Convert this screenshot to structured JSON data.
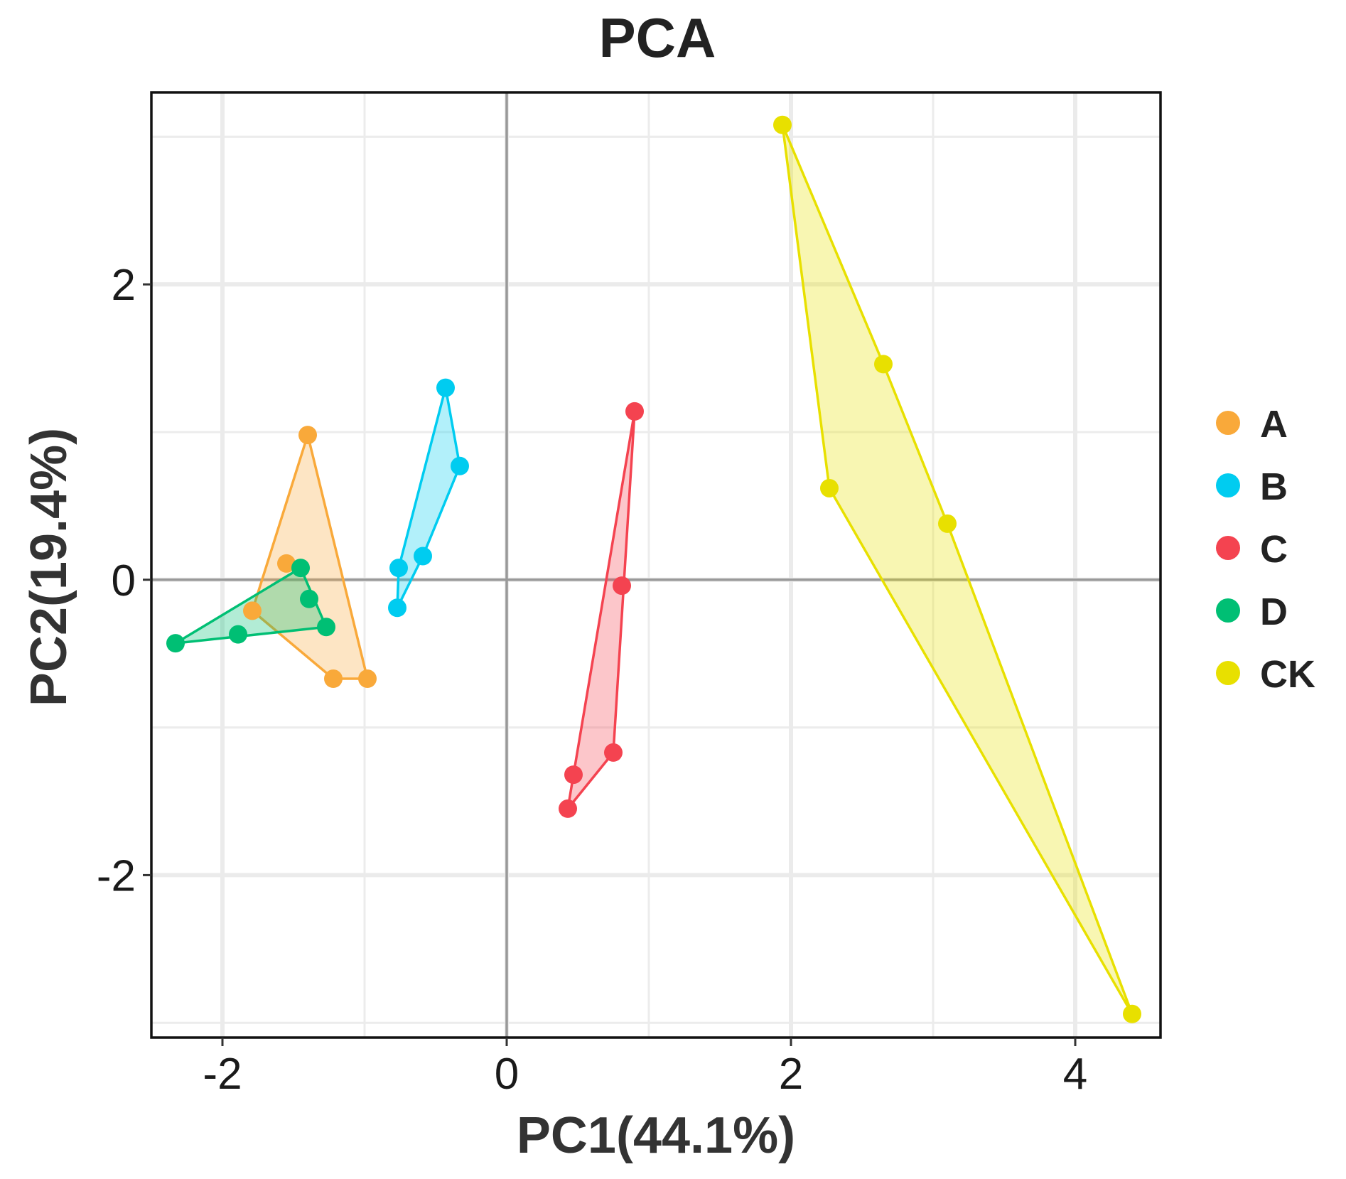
{
  "chart_data": {
    "type": "scatter",
    "title": "PCA",
    "xlabel": "PC1(44.1%)",
    "ylabel": "PC2(19.4%)",
    "xlim": [
      -2.5,
      4.6
    ],
    "ylim": [
      -3.1,
      3.3
    ],
    "x_ticks": [
      -2,
      0,
      2,
      4
    ],
    "y_ticks": [
      -2,
      0,
      2
    ],
    "x_tick_labels": [
      "-2",
      "0",
      "2",
      "4"
    ],
    "y_tick_labels": [
      "-2",
      "0",
      "2"
    ],
    "grid": true,
    "reference_lines": {
      "x": 0,
      "y": 0
    },
    "hulls": true,
    "legend_position": "right",
    "series": [
      {
        "name": "A",
        "color": "#F9A93A",
        "points": [
          [
            -1.4,
            0.98
          ],
          [
            -1.55,
            0.11
          ],
          [
            -1.79,
            -0.21
          ],
          [
            -1.22,
            -0.67
          ],
          [
            -0.98,
            -0.67
          ]
        ]
      },
      {
        "name": "B",
        "color": "#00CCF0",
        "points": [
          [
            -0.43,
            1.3
          ],
          [
            -0.33,
            0.77
          ],
          [
            -0.59,
            0.16
          ],
          [
            -0.76,
            0.08
          ],
          [
            -0.77,
            -0.19
          ]
        ]
      },
      {
        "name": "C",
        "color": "#F44350",
        "points": [
          [
            0.9,
            1.14
          ],
          [
            0.81,
            -0.04
          ],
          [
            0.75,
            -1.17
          ],
          [
            0.47,
            -1.32
          ],
          [
            0.43,
            -1.55
          ]
        ]
      },
      {
        "name": "D",
        "color": "#00BF74",
        "points": [
          [
            -1.45,
            0.08
          ],
          [
            -1.39,
            -0.13
          ],
          [
            -1.27,
            -0.32
          ],
          [
            -1.89,
            -0.37
          ],
          [
            -2.33,
            -0.43
          ]
        ]
      },
      {
        "name": "CK",
        "color": "#E8E000",
        "points": [
          [
            1.94,
            3.08
          ],
          [
            2.65,
            1.46
          ],
          [
            2.27,
            0.62
          ],
          [
            3.1,
            0.38
          ],
          [
            4.4,
            -2.94
          ]
        ]
      }
    ]
  }
}
